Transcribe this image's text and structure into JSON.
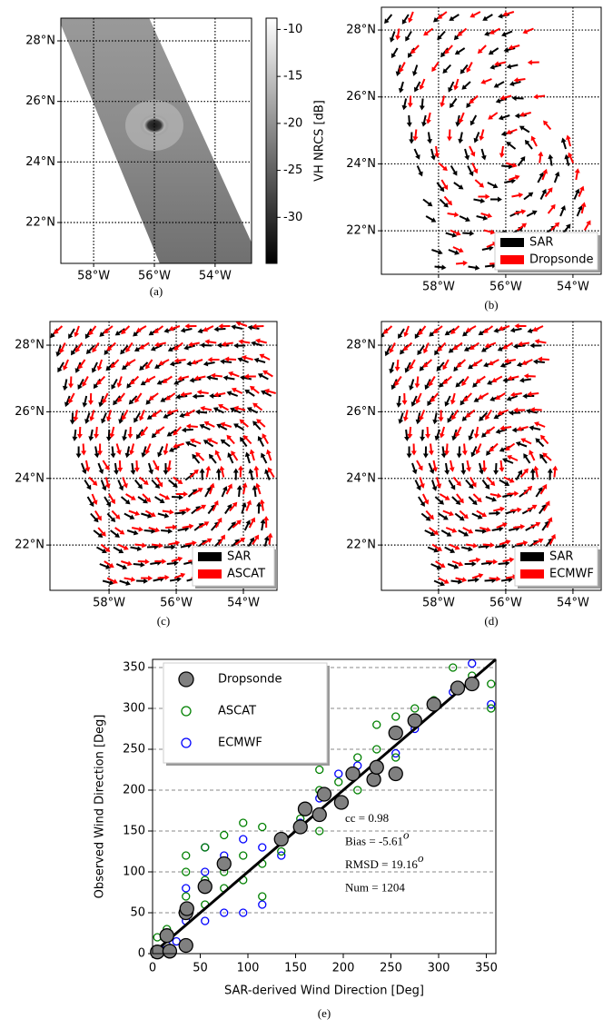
{
  "chart_data": [
    {
      "type": "image-map",
      "caption": "(a)",
      "xlim": [
        -59.08,
        -52.8
      ],
      "ylim": [
        20.65,
        28.75
      ],
      "xticks": [
        {
          "value": -58,
          "label": "58°W"
        },
        {
          "value": -56,
          "label": "56°W"
        },
        {
          "value": -54,
          "label": "54°W"
        }
      ],
      "yticks": [
        {
          "value": 22,
          "label": "22°N"
        },
        {
          "value": 24,
          "label": "24°N"
        },
        {
          "value": 26,
          "label": "26°N"
        },
        {
          "value": 28,
          "label": "28°N"
        }
      ],
      "colorbar": {
        "label": "VH NRCS [dB]",
        "lim": [
          -34.9,
          -8.8
        ],
        "ticks": [
          -10,
          -15,
          -20,
          -25,
          -30
        ]
      }
    },
    {
      "type": "vector-map",
      "caption": "(b)",
      "xlim": [
        -59.7,
        -53.16
      ],
      "ylim": [
        20.7,
        28.68
      ],
      "xticks": [
        {
          "value": -58,
          "label": "58°W"
        },
        {
          "value": -56,
          "label": "56°W"
        },
        {
          "value": -54,
          "label": "54°W"
        }
      ],
      "yticks": [
        {
          "value": 22,
          "label": "22°N"
        },
        {
          "value": 24,
          "label": "24°N"
        },
        {
          "value": 26,
          "label": "26°N"
        },
        {
          "value": 28,
          "label": "28°N"
        }
      ],
      "series": [
        {
          "name": "SAR",
          "color": "#000000"
        },
        {
          "name": "Dropsonde",
          "color": "#ff0000"
        }
      ],
      "legend": "lower right"
    },
    {
      "type": "vector-map",
      "caption": "(c)",
      "xlim": [
        -59.76,
        -53.0
      ],
      "ylim": [
        20.64,
        28.71
      ],
      "xticks": [
        {
          "value": -58,
          "label": "58°W"
        },
        {
          "value": -56,
          "label": "56°W"
        },
        {
          "value": -54,
          "label": "54°W"
        }
      ],
      "yticks": [
        {
          "value": 22,
          "label": "22°N"
        },
        {
          "value": 24,
          "label": "24°N"
        },
        {
          "value": 26,
          "label": "26°N"
        },
        {
          "value": 28,
          "label": "28°N"
        }
      ],
      "series": [
        {
          "name": "SAR",
          "color": "#000000"
        },
        {
          "name": "ASCAT",
          "color": "#ff0000"
        }
      ],
      "legend": "lower right"
    },
    {
      "type": "vector-map",
      "caption": "(d)",
      "xlim": [
        -59.7,
        -53.16
      ],
      "ylim": [
        20.64,
        28.71
      ],
      "xticks": [
        {
          "value": -58,
          "label": "58°W"
        },
        {
          "value": -56,
          "label": "56°W"
        },
        {
          "value": -54,
          "label": "54°W"
        }
      ],
      "yticks": [
        {
          "value": 22,
          "label": "22°N"
        },
        {
          "value": 24,
          "label": "24°N"
        },
        {
          "value": 26,
          "label": "26°N"
        },
        {
          "value": 28,
          "label": "28°N"
        }
      ],
      "series": [
        {
          "name": "SAR",
          "color": "#000000"
        },
        {
          "name": "ECMWF",
          "color": "#ff0000"
        }
      ],
      "legend": "lower right"
    },
    {
      "type": "scatter",
      "caption": "(e)",
      "x_label": "SAR-derived Wind Direction [Deg]",
      "y_label": "Observed Wind Direction [Deg]",
      "xlim": [
        0,
        360
      ],
      "ylim": [
        0,
        360
      ],
      "xticks": [
        0,
        50,
        100,
        150,
        200,
        250,
        300,
        350
      ],
      "yticks": [
        0,
        50,
        100,
        150,
        200,
        250,
        300,
        350
      ],
      "grid": "y",
      "legend": "upper left",
      "series": [
        {
          "name": "Dropsonde",
          "color": "#808080",
          "filled": true,
          "x": [
            5,
            15,
            18,
            35,
            35,
            36,
            55,
            75,
            135,
            155,
            160,
            175,
            180,
            198,
            210,
            232,
            235,
            255,
            255,
            275,
            295,
            320,
            335
          ],
          "values": [
            2,
            22,
            3,
            50,
            10,
            55,
            82,
            110,
            140,
            155,
            177,
            170,
            195,
            185,
            220,
            213,
            228,
            270,
            220,
            285,
            305,
            325,
            330
          ]
        },
        {
          "name": "ASCAT",
          "color": "#008000",
          "filled": false,
          "x": [
            5,
            15,
            35,
            35,
            35,
            55,
            55,
            55,
            75,
            75,
            75,
            95,
            95,
            95,
            115,
            115,
            115,
            135,
            155,
            175,
            175,
            175,
            195,
            215,
            215,
            235,
            235,
            255,
            255,
            275,
            295,
            315,
            335,
            355,
            355
          ],
          "values": [
            20,
            30,
            120,
            100,
            70,
            130,
            90,
            60,
            145,
            100,
            80,
            160,
            120,
            90,
            155,
            110,
            70,
            125,
            165,
            225,
            200,
            150,
            210,
            240,
            200,
            280,
            250,
            290,
            240,
            300,
            310,
            350,
            340,
            300,
            330
          ]
        },
        {
          "name": "ECMWF",
          "color": "#0000ff",
          "filled": false,
          "x": [
            15,
            25,
            35,
            35,
            55,
            55,
            55,
            75,
            75,
            95,
            95,
            115,
            115,
            135,
            155,
            175,
            195,
            215,
            235,
            255,
            275,
            295,
            315,
            335,
            355
          ],
          "values": [
            10,
            15,
            80,
            40,
            130,
            100,
            40,
            120,
            50,
            140,
            50,
            130,
            60,
            120,
            160,
            190,
            220,
            230,
            230,
            245,
            275,
            305,
            320,
            355,
            305
          ]
        }
      ],
      "annotations": [
        {
          "text": "cc = 0.98"
        },
        {
          "text": "Bias = -5.61",
          "sup": "o"
        },
        {
          "text": "RMSD = 19.16",
          "sup": "o"
        },
        {
          "text": "Num = 1204"
        }
      ]
    }
  ]
}
